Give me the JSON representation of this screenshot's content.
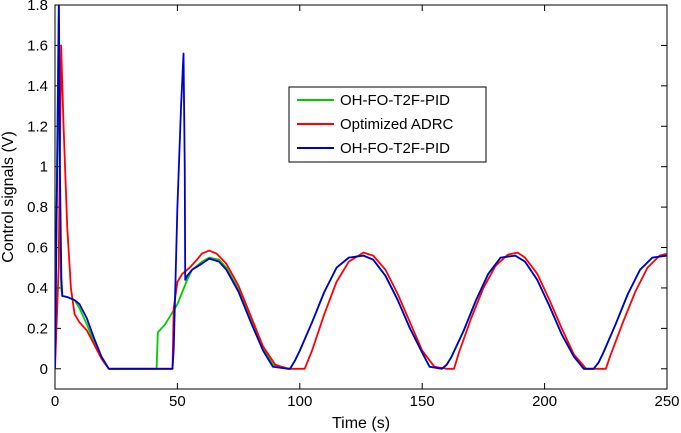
{
  "chart_data": {
    "type": "line",
    "title": "",
    "xlabel": "Time (s)",
    "ylabel": "Control signals (V)",
    "xlim": [
      0,
      250
    ],
    "ylim": [
      -0.1,
      1.8
    ],
    "xticks": [
      0,
      50,
      100,
      150,
      200,
      250
    ],
    "xtick_labels": [
      "0",
      "50",
      "100",
      "150",
      "200",
      "250"
    ],
    "yticks": [
      0,
      0.2,
      0.4,
      0.6,
      0.8,
      1,
      1.2,
      1.4,
      1.6,
      1.8
    ],
    "ytick_labels": [
      "0",
      "0.2",
      "0.4",
      "0.6",
      "0.8",
      "1",
      "1.2",
      "1.4",
      "1.6",
      "1.8"
    ],
    "grid": false,
    "legend_position": "upper-middle",
    "series": [
      {
        "name": "OH-FO-T2F-PID",
        "color": "#00cc00",
        "x": [
          0,
          1.5,
          2,
          2.5,
          3,
          5,
          8,
          10,
          13,
          16,
          19,
          22,
          25,
          30,
          35,
          41.5,
          42,
          45,
          48,
          50,
          52,
          54,
          56,
          60,
          63,
          67,
          70,
          75,
          80,
          85,
          89,
          96,
          98,
          100,
          105,
          110,
          115,
          120,
          126,
          130,
          135,
          140,
          145,
          150,
          153,
          158,
          160,
          162,
          167,
          172,
          177,
          182,
          188,
          192,
          197,
          202,
          207,
          212,
          216,
          220,
          222,
          224,
          229,
          234,
          239,
          244,
          250
        ],
        "y": [
          0,
          1.8,
          0.8,
          0.4,
          0.36,
          0.355,
          0.34,
          0.3,
          0.22,
          0.13,
          0.05,
          0,
          0,
          0,
          0,
          0,
          0.18,
          0.22,
          0.28,
          0.32,
          0.38,
          0.44,
          0.49,
          0.53,
          0.55,
          0.54,
          0.5,
          0.39,
          0.24,
          0.1,
          0.02,
          0,
          0.04,
          0.09,
          0.23,
          0.38,
          0.5,
          0.55,
          0.56,
          0.54,
          0.46,
          0.34,
          0.2,
          0.08,
          0.01,
          0,
          0.02,
          0.06,
          0.19,
          0.34,
          0.47,
          0.55,
          0.56,
          0.53,
          0.44,
          0.31,
          0.17,
          0.06,
          0,
          0,
          0.03,
          0.08,
          0.22,
          0.37,
          0.49,
          0.55,
          0.56
        ]
      },
      {
        "name": "Optimized ADRC",
        "color": "#ff0000",
        "x": [
          0,
          1.5,
          2.5,
          3.5,
          5,
          6.5,
          8,
          10,
          13,
          16,
          19,
          22,
          25,
          30,
          35,
          40,
          45,
          48,
          48.5,
          50,
          52,
          55,
          58,
          60,
          63,
          66,
          70,
          75,
          80,
          85,
          90,
          95,
          100,
          102,
          105,
          110,
          115,
          120,
          126,
          130,
          135,
          140,
          145,
          150,
          155,
          160,
          163,
          165,
          170,
          175,
          180,
          185,
          189,
          192,
          197,
          202,
          207,
          212,
          217,
          222,
          225,
          227,
          232,
          237,
          242,
          247,
          250
        ],
        "y": [
          0,
          0.5,
          1.6,
          1.2,
          0.7,
          0.4,
          0.27,
          0.23,
          0.19,
          0.12,
          0.05,
          0,
          0,
          0,
          0,
          0,
          0,
          0,
          0.3,
          0.43,
          0.47,
          0.5,
          0.54,
          0.57,
          0.585,
          0.57,
          0.52,
          0.41,
          0.26,
          0.11,
          0.02,
          0,
          0,
          0,
          0.09,
          0.27,
          0.43,
          0.53,
          0.575,
          0.56,
          0.49,
          0.37,
          0.23,
          0.09,
          0.01,
          0,
          0,
          0.08,
          0.25,
          0.4,
          0.51,
          0.565,
          0.575,
          0.55,
          0.47,
          0.34,
          0.2,
          0.07,
          0,
          0,
          0,
          0.07,
          0.23,
          0.38,
          0.5,
          0.56,
          0.57
        ]
      },
      {
        "name": "OH-FO-T2F-PID",
        "color": "#0000cc",
        "x": [
          0,
          1.6,
          2,
          2.6,
          3,
          5,
          8,
          10,
          13,
          16,
          19,
          22,
          25,
          30,
          35,
          40,
          45,
          48,
          48.5,
          50,
          51.5,
          52.5,
          53,
          53.2,
          54,
          56,
          60,
          63,
          67,
          70,
          75,
          80,
          85,
          89,
          95,
          96,
          98,
          100,
          105,
          110,
          115,
          120,
          126,
          130,
          135,
          140,
          145,
          150,
          153,
          158,
          160,
          162,
          167,
          172,
          177,
          182,
          188,
          192,
          197,
          202,
          207,
          212,
          216,
          220,
          222,
          224,
          229,
          234,
          239,
          244,
          250
        ],
        "y": [
          0,
          1.8,
          1.0,
          0.45,
          0.36,
          0.355,
          0.34,
          0.32,
          0.25,
          0.15,
          0.06,
          0,
          0,
          0,
          0,
          0,
          0,
          0,
          0.1,
          0.8,
          1.3,
          1.56,
          1.0,
          0.44,
          0.46,
          0.49,
          0.52,
          0.545,
          0.53,
          0.49,
          0.38,
          0.23,
          0.09,
          0.01,
          0,
          0,
          0.04,
          0.09,
          0.23,
          0.38,
          0.5,
          0.55,
          0.56,
          0.54,
          0.46,
          0.34,
          0.2,
          0.08,
          0.01,
          0,
          0.02,
          0.06,
          0.19,
          0.34,
          0.47,
          0.55,
          0.56,
          0.53,
          0.44,
          0.31,
          0.17,
          0.06,
          0,
          0,
          0.03,
          0.08,
          0.22,
          0.37,
          0.49,
          0.55,
          0.56
        ]
      }
    ]
  }
}
